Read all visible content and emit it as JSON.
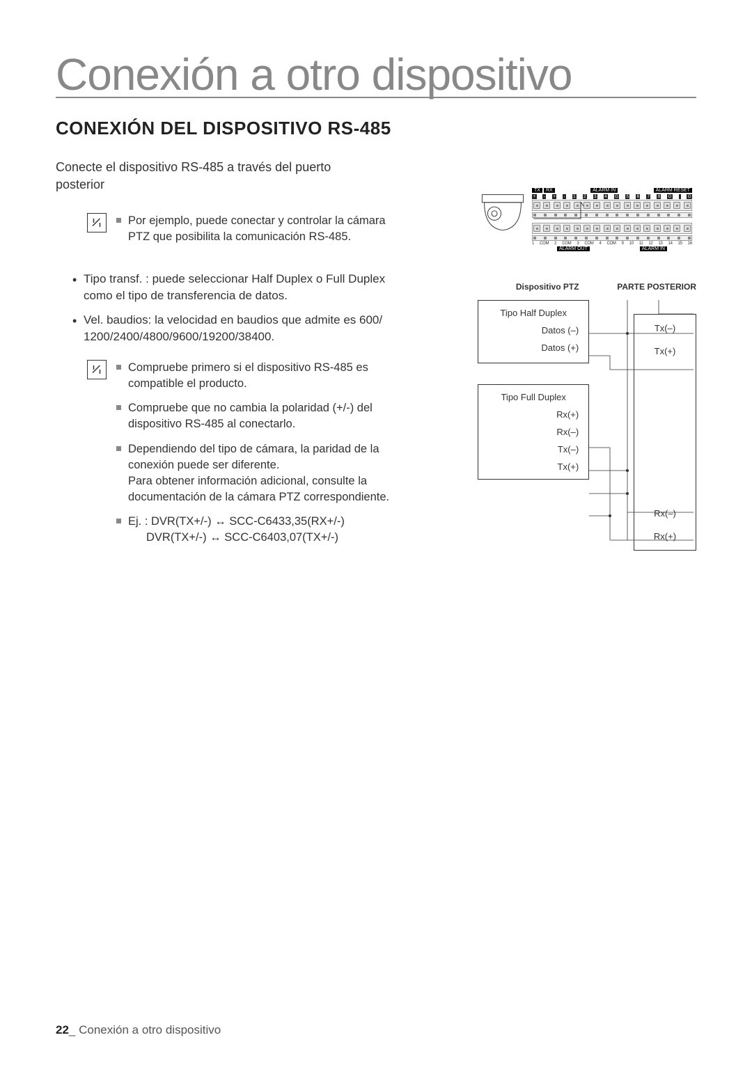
{
  "page": {
    "main_title": "Conexión a otro dispositivo",
    "section_title": "CONEXIÓN DEL DISPOSITIVO RS-485",
    "intro": "Conecte el dispositivo RS-485 a través del puerto posterior",
    "page_number": "22",
    "footer_text": "Conexión a otro dispositivo"
  },
  "note1": {
    "item1": "Por ejemplo, puede conectar y controlar la cámara PTZ que posibilita la comunicación RS-485."
  },
  "bullets": {
    "b1": "Tipo transf. : puede seleccionar Half Duplex o Full Duplex como el tipo de transferencia de datos.",
    "b2": "Vel. baudios: la velocidad en baudios que admite es 600/ 1200/2400/4800/9600/19200/38400."
  },
  "note2": {
    "item1": "Compruebe primero si el dispositivo RS-485 es compatible el producto.",
    "item2": "Compruebe que no cambia la polaridad (+/-) del dispositivo RS-485 al conectarlo.",
    "item3": "Dependiendo del tipo de cámara, la paridad de la conexión puede ser diferente.",
    "item3b": "Para obtener información adicional, consulte la documentación de la cámara PTZ correspondiente.",
    "item4a": "Ej. : DVR(TX+/-) ↔ SCC-C6433,35(RX+/-)",
    "item4b": "DVR(TX+/-) ↔ SCC-C6403,07(TX+/-)"
  },
  "diagram": {
    "ptz_title": "Dispositivo PTZ",
    "rear_title": "PARTE POSTERIOR",
    "half_duplex": "Tipo Half Duplex",
    "data_minus": "Datos (–)",
    "data_plus": "Datos (+)",
    "full_duplex": "Tipo Full Duplex",
    "rx_plus": "Rx(+)",
    "rx_minus": "Rx(–)",
    "tx_minus": "Tx(–)",
    "tx_plus": "Tx(+)",
    "r_tx_minus": "Tx(–)",
    "r_tx_plus": "Tx(+)",
    "r_rx_minus": "Rx(–)",
    "r_rx_plus": "Rx(+)",
    "term_top": {
      "tx": "TX",
      "rx": "RX",
      "alarm_in": "ALARM IN",
      "alarm_reset": "ALARM RESET"
    },
    "term_bottom": {
      "alarm_out": "ALARM OUT",
      "alarm_in": "ALARM IN"
    },
    "term_nums_top": [
      "+",
      "-",
      "+",
      "-",
      "1",
      "2",
      "3",
      "4",
      "G",
      "5",
      "6",
      "7",
      "8",
      "G",
      "",
      "G"
    ],
    "term_nums_bottom": [
      "1",
      "COM",
      "2",
      "COM",
      "3",
      "COM",
      "4",
      "COM",
      "9",
      "10",
      "11",
      "12",
      "13",
      "14",
      "15",
      "16"
    ]
  },
  "colors": {
    "title_gray": "#888888",
    "text": "#333333",
    "black": "#000000"
  }
}
